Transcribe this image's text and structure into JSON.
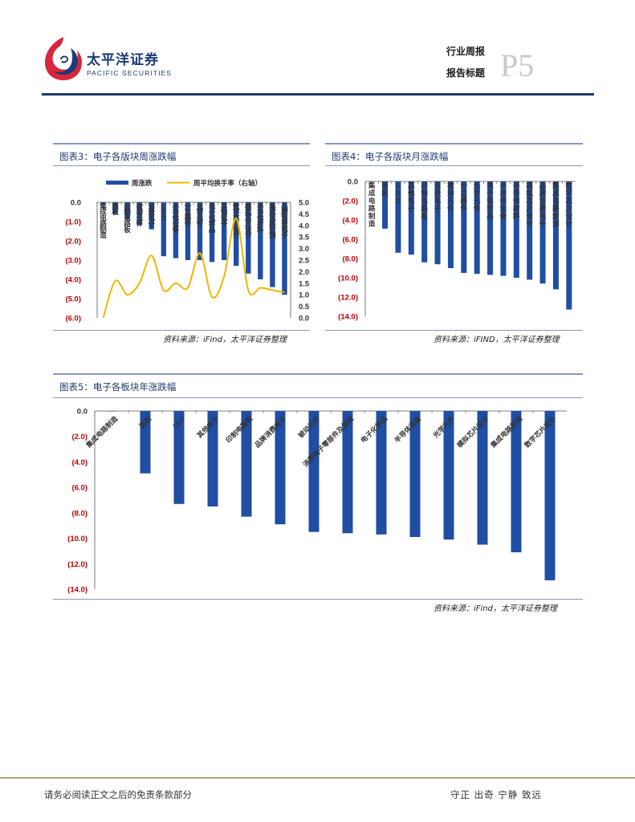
{
  "header": {
    "company_cn": "太平洋证券",
    "company_en": "PACIFIC SECURITIES",
    "report_type": "行业周报",
    "report_title": "报告标题",
    "page_mark": "P5"
  },
  "colors": {
    "navy": "#1f3a6e",
    "bar": "#1f4ea3",
    "line": "#f2b600",
    "red": "#c00000"
  },
  "figures": [
    {
      "title": "图表3：电子各版块周涨跌幅",
      "source": "资料来源：iFind，太平洋证券整理"
    },
    {
      "title": "图表4：电子各版块月涨跌幅",
      "source": "资料来源：iFIND，太平洋证券整理"
    },
    {
      "title": "图表5：电子各板块年涨跌幅",
      "source": "资料来源：iFind，太平洋证券整理"
    }
  ],
  "chart_data": [
    {
      "type": "bar",
      "title": "电子各版块周涨跌幅",
      "legend": [
        "周涨跌",
        "周平均换手率（右轴）"
      ],
      "categories": [
        "集成电路制造",
        "面板",
        "印制电路板",
        "被动元件",
        "消费电子",
        "LED",
        "半导体设备",
        "分立器件",
        "光学元件",
        "电子化学品",
        "其他电子",
        "数字芯片设计",
        "模拟芯片设计",
        "半导体材料",
        "集成电路封测",
        "品牌消费电子"
      ],
      "series": [
        {
          "name": "周涨跌",
          "axis": "left",
          "values": [
            -0.15,
            -0.6,
            -0.9,
            -1.2,
            -1.4,
            -2.8,
            -2.9,
            -3.0,
            -3.0,
            -3.1,
            -3.0,
            -3.3,
            -3.7,
            -4.0,
            -4.4,
            -4.8
          ]
        },
        {
          "name": "周平均换手率（右轴）",
          "axis": "right",
          "type": "line",
          "values": [
            0.0,
            1.6,
            1.0,
            1.5,
            2.7,
            1.2,
            1.5,
            1.3,
            2.8,
            0.9,
            1.8,
            4.3,
            1.2,
            1.3,
            1.2,
            1.1
          ]
        }
      ],
      "y_left": {
        "ticks": [
          "0.0",
          "(1.0)",
          "(2.0)",
          "(3.0)",
          "(4.0)",
          "(5.0)",
          "(6.0)"
        ],
        "range": [
          -6,
          0
        ]
      },
      "y_right": {
        "ticks": [
          "5.0",
          "4.5",
          "4.0",
          "3.5",
          "3.0",
          "2.5",
          "2.0",
          "1.5",
          "1.0",
          "0.5",
          "0.0"
        ],
        "range": [
          0,
          5
        ]
      }
    },
    {
      "type": "bar",
      "title": "电子各版块月涨跌幅",
      "categories": [
        "集成电路制造",
        "面板",
        "LED",
        "其他电子",
        "印制电路板",
        "消费电子",
        "被动元件",
        "分立器件",
        "光学元件",
        "电子化学品",
        "半导体设备",
        "半导体材料",
        "模拟芯片设计",
        "品牌消费电子",
        "集成电路封测",
        "数字芯片设计"
      ],
      "values": [
        -0.05,
        -4.9,
        -7.4,
        -7.6,
        -8.4,
        -8.6,
        -9.0,
        -9.5,
        -9.6,
        -9.7,
        -9.8,
        -10.0,
        -10.2,
        -10.6,
        -11.2,
        -13.3
      ],
      "y": {
        "ticks": [
          "0.0",
          "(2.0)",
          "(4.0)",
          "(6.0)",
          "(8.0)",
          "(10.0)",
          "(12.0)",
          "(14.0)"
        ],
        "range": [
          -14,
          0
        ]
      }
    },
    {
      "type": "bar",
      "title": "电子各板块年涨跌幅",
      "categories": [
        "集成电路制造",
        "面板",
        "LED",
        "其他电子",
        "印制电路板",
        "品牌消费电子",
        "被动元件",
        "消费电子零部件及组装",
        "电子化学品",
        "半导体设备",
        "光学元件",
        "模拟芯片设计",
        "集成电路封测",
        "数字芯片设计"
      ],
      "values": [
        0.0,
        -4.9,
        -7.3,
        -7.5,
        -8.3,
        -8.9,
        -9.5,
        -9.6,
        -9.7,
        -9.9,
        -10.1,
        -10.5,
        -11.1,
        -13.3
      ],
      "y": {
        "ticks": [
          "0.0",
          "(2.0)",
          "(4.0)",
          "(6.0)",
          "(8.0)",
          "(10.0)",
          "(12.0)",
          "(14.0)"
        ],
        "range": [
          -14,
          0
        ]
      }
    }
  ],
  "footer": {
    "disclaimer": "请务必阅读正文之后的免责条款部分",
    "motto": "守正 出奇 宁静 致远"
  }
}
